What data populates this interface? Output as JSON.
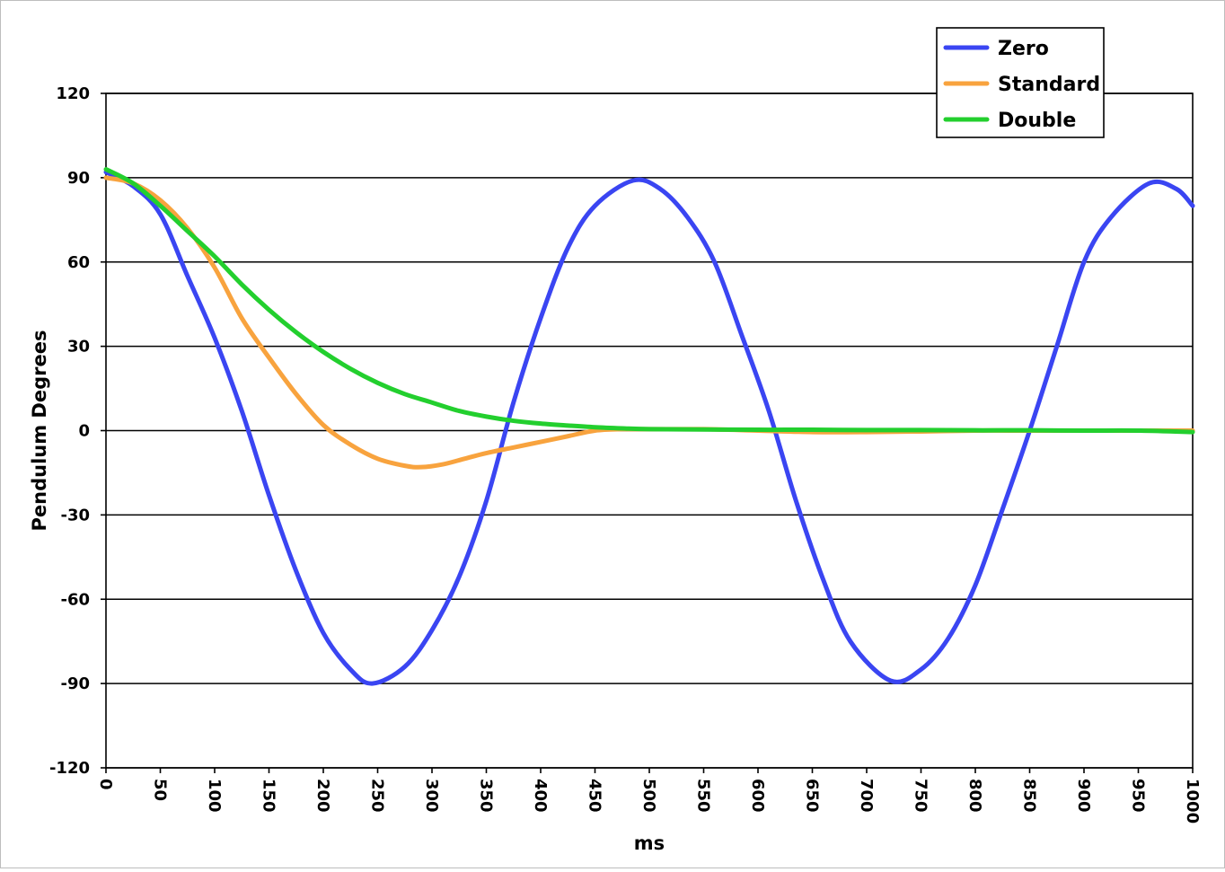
{
  "chart_data": {
    "type": "line",
    "xlabel": "ms",
    "ylabel": "Pendulum Degrees",
    "xlim": [
      0,
      1000
    ],
    "ylim": [
      -120,
      120
    ],
    "x_ticks": [
      0,
      50,
      100,
      150,
      200,
      250,
      300,
      350,
      400,
      450,
      500,
      550,
      600,
      650,
      700,
      750,
      800,
      850,
      900,
      950,
      1000
    ],
    "y_ticks": [
      120,
      90,
      60,
      30,
      0,
      -30,
      -60,
      -90,
      -120
    ],
    "grid": "horizontal",
    "legend_position": "top-right",
    "series": [
      {
        "name": "Zero",
        "color": "#3a45f2",
        "x": [
          0,
          25,
          50,
          75,
          100,
          125,
          150,
          175,
          200,
          225,
          245,
          275,
          300,
          325,
          350,
          375,
          400,
          425,
          450,
          485,
          510,
          535,
          560,
          585,
          610,
          635,
          660,
          685,
          722,
          750,
          775,
          800,
          825,
          850,
          875,
          900,
          925,
          960,
          985,
          1000
        ],
        "y": [
          92,
          87,
          77,
          55,
          33,
          7,
          -23,
          -50,
          -72,
          -85,
          -90,
          -84,
          -71,
          -52,
          -25,
          10,
          40,
          65,
          80,
          89,
          86,
          76,
          60,
          34,
          7,
          -25,
          -53,
          -75,
          -89,
          -85,
          -74,
          -55,
          -28,
          0,
          30,
          60,
          76,
          88,
          86,
          80
        ]
      },
      {
        "name": "Standard",
        "color": "#f8a33e",
        "x": [
          0,
          25,
          50,
          75,
          100,
          125,
          150,
          175,
          200,
          225,
          250,
          275,
          290,
          310,
          330,
          350,
          375,
          400,
          425,
          450,
          475,
          500,
          550,
          600,
          650,
          700,
          750,
          800,
          850,
          900,
          950,
          1000
        ],
        "y": [
          90,
          88,
          82,
          72,
          58,
          40,
          26,
          13,
          2,
          -5,
          -10,
          -12.5,
          -13,
          -12,
          -10,
          -8,
          -6,
          -4,
          -2,
          0,
          0.5,
          0.5,
          0.5,
          0,
          -0.5,
          -0.5,
          -0.3,
          0,
          0,
          0,
          0,
          0
        ]
      },
      {
        "name": "Double",
        "color": "#23cf2e",
        "x": [
          0,
          25,
          50,
          75,
          100,
          125,
          150,
          175,
          200,
          225,
          250,
          275,
          300,
          325,
          350,
          375,
          400,
          425,
          450,
          475,
          500,
          550,
          600,
          650,
          700,
          750,
          800,
          850,
          900,
          950,
          1000
        ],
        "y": [
          93,
          88,
          80,
          71,
          62,
          52,
          43,
          35,
          28,
          22,
          17,
          13,
          10,
          7,
          5,
          3.5,
          2.5,
          1.8,
          1.2,
          0.8,
          0.5,
          0.4,
          0.3,
          0.3,
          0.2,
          0.2,
          0.1,
          0.1,
          0,
          0,
          -0.5
        ]
      }
    ]
  }
}
